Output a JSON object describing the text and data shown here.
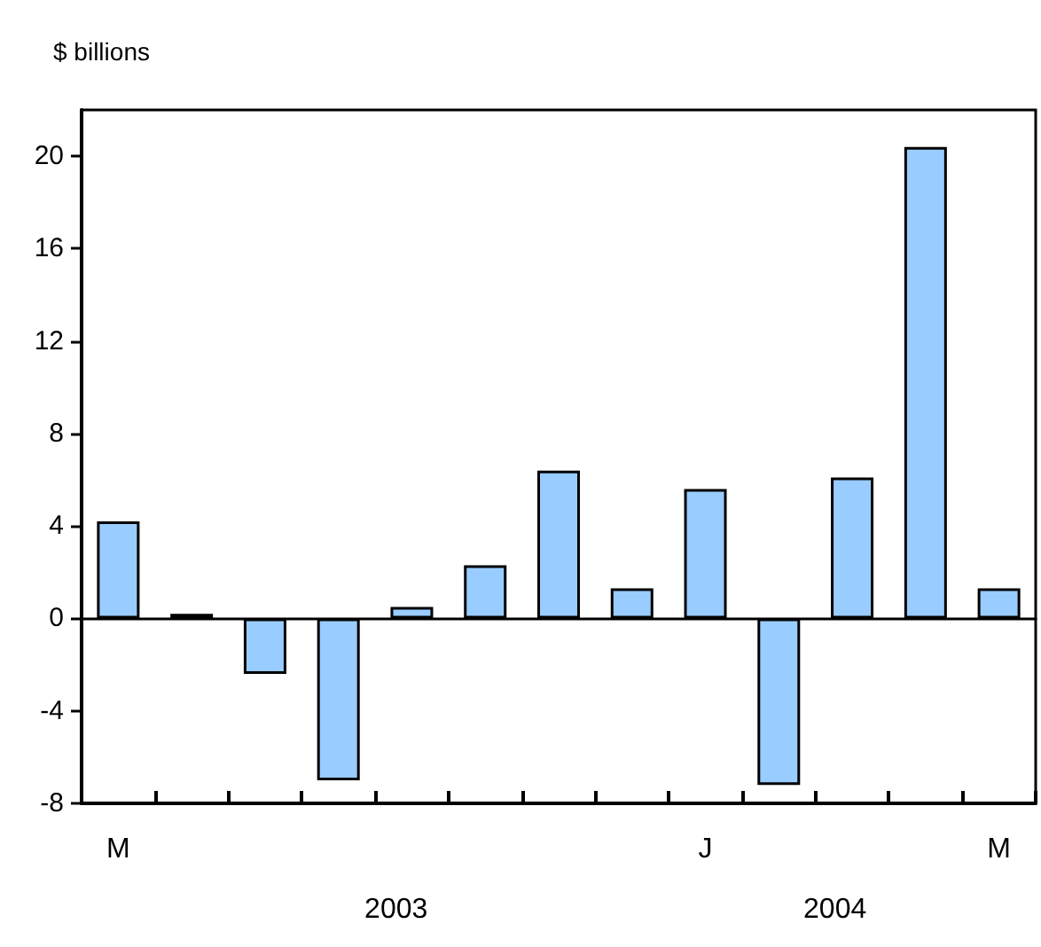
{
  "chart_data": {
    "type": "bar",
    "ylabel": "$ billions",
    "categories": [
      "M",
      null,
      null,
      null,
      null,
      null,
      null,
      null,
      "J",
      null,
      null,
      null,
      "M"
    ],
    "values": [
      4.2,
      0.2,
      -2.4,
      -7.0,
      0.5,
      2.3,
      6.4,
      1.3,
      5.6,
      -7.2,
      6.1,
      20.4,
      1.3
    ],
    "color": "#99ccff",
    "ylim": [
      -8,
      22
    ],
    "yticks": [
      -8,
      -4,
      0,
      4,
      8,
      12,
      16,
      20
    ],
    "annotations": [
      "2003",
      "2004"
    ]
  }
}
